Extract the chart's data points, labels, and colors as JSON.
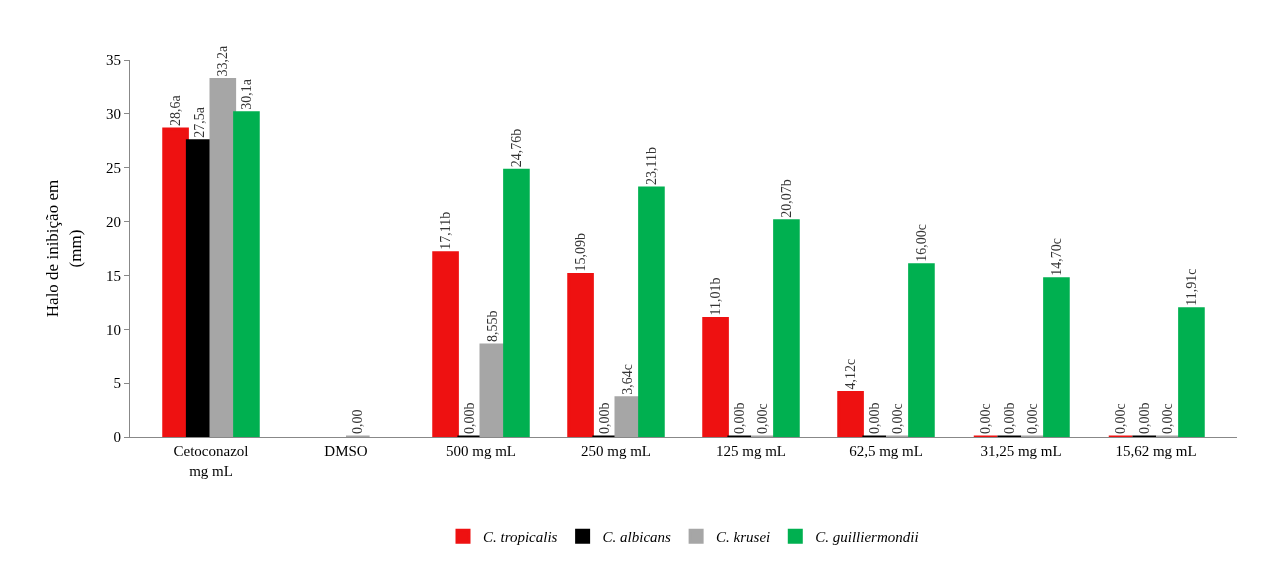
{
  "chart_data": {
    "type": "bar",
    "ylabel": "Halo de inibição em (mm)",
    "categories": [
      "Cetoconazol mg mL",
      "DMSO",
      "500 mg mL",
      "250 mg mL",
      "125 mg mL",
      "62,5 mg mL",
      "31,25 mg mL",
      "15,62 mg mL"
    ],
    "series": [
      {
        "name": "C. tropicalis",
        "color": "#ee1111",
        "values": [
          28.6,
          null,
          17.11,
          15.09,
          11.01,
          4.12,
          0,
          0
        ],
        "value_labels": [
          "28,6a",
          null,
          "17,11b",
          "15,09b",
          "11,01b",
          "4,12c",
          "0,00c",
          "0,00c"
        ]
      },
      {
        "name": "C. albicans",
        "color": "#000000",
        "values": [
          27.5,
          null,
          0,
          0,
          0,
          0,
          0,
          0
        ],
        "value_labels": [
          "27,5a",
          null,
          "0,00b",
          "0,00b",
          "0,00b",
          "0,00b",
          "0,00b",
          "0,00b"
        ]
      },
      {
        "name": "C. krusei",
        "color": "#a6a6a6",
        "values": [
          33.2,
          0,
          8.55,
          3.64,
          0,
          0,
          0,
          0
        ],
        "value_labels": [
          "33,2a",
          "0,00",
          "8,55b",
          "3,64c",
          "0,00c",
          "0,00c",
          "0,00c",
          "0,00c"
        ]
      },
      {
        "name": "C. guilliermondii",
        "color": "#00b050",
        "values": [
          30.1,
          null,
          24.76,
          23.11,
          20.07,
          16,
          14.7,
          11.91
        ],
        "value_labels": [
          "30,1a",
          null,
          "24,76b",
          "23,11b",
          "20,07b",
          "16,00c",
          "14,70c",
          "11,91c"
        ]
      }
    ],
    "ylim": [
      0,
      35
    ],
    "yticks": [
      0,
      5,
      10,
      15,
      20,
      25,
      30,
      35
    ],
    "grid": false,
    "legend": "bottom"
  }
}
